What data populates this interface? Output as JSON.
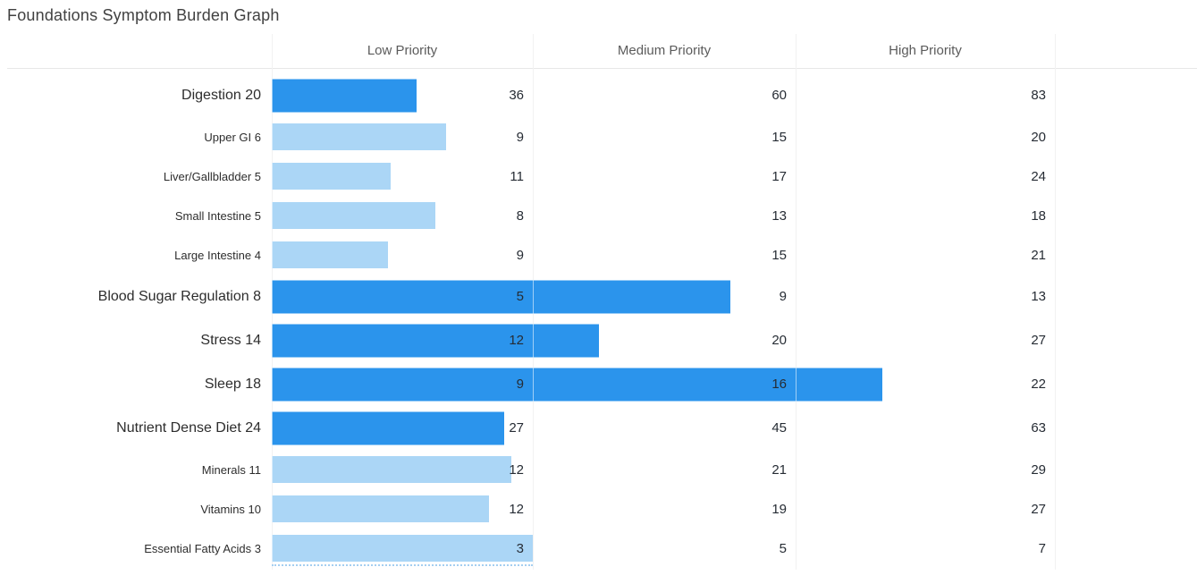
{
  "title": "Foundations Symptom Burden Graph",
  "colors": {
    "bar_primary": "#2b94ec",
    "bar_secondary": "#abd6f6",
    "grid_line": "#e2e2e2",
    "header_text": "#5b5b5b",
    "value_text": "#262c34",
    "title_text": "#414141",
    "dotted_baseline": "#a5cff1"
  },
  "chart_data": {
    "type": "bar",
    "orientation": "horizontal",
    "title": "Foundations Symptom Burden Graph",
    "columns": [
      "Low Priority",
      "Medium Priority",
      "High Priority"
    ],
    "legend": "none",
    "grid": "vertical-column-separators",
    "rows": [
      {
        "display": "Digestion 20",
        "label": "Digestion",
        "score": 20,
        "low": 36,
        "medium": 60,
        "high": 83,
        "emphasis": true
      },
      {
        "display": "Upper GI 6",
        "label": "Upper GI",
        "score": 6,
        "low": 9,
        "medium": 15,
        "high": 20,
        "emphasis": false
      },
      {
        "display": "Liver/Gallbladder 5",
        "label": "Liver/Gallbladder",
        "score": 5,
        "low": 11,
        "medium": 17,
        "high": 24,
        "emphasis": false
      },
      {
        "display": "Small Intestine 5",
        "label": "Small Intestine",
        "score": 5,
        "low": 8,
        "medium": 13,
        "high": 18,
        "emphasis": false
      },
      {
        "display": "Large Intestine 4",
        "label": "Large Intestine",
        "score": 4,
        "low": 9,
        "medium": 15,
        "high": 21,
        "emphasis": false
      },
      {
        "display": "Blood Sugar Regulation 8",
        "label": "Blood Sugar Regulation",
        "score": 8,
        "low": 5,
        "medium": 9,
        "high": 13,
        "emphasis": true
      },
      {
        "display": "Stress 14",
        "label": "Stress",
        "score": 14,
        "low": 12,
        "medium": 20,
        "high": 27,
        "emphasis": true
      },
      {
        "display": "Sleep 18",
        "label": "Sleep",
        "score": 18,
        "low": 9,
        "medium": 16,
        "high": 22,
        "emphasis": true
      },
      {
        "display": "Nutrient Dense Diet 24",
        "label": "Nutrient Dense Diet",
        "score": 24,
        "low": 27,
        "medium": 45,
        "high": 63,
        "emphasis": true
      },
      {
        "display": "Minerals 11",
        "label": "Minerals",
        "score": 11,
        "low": 12,
        "medium": 21,
        "high": 29,
        "emphasis": false
      },
      {
        "display": "Vitamins 10",
        "label": "Vitamins",
        "score": 10,
        "low": 12,
        "medium": 19,
        "high": 27,
        "emphasis": false
      },
      {
        "display": "Essential Fatty Acids 3",
        "label": "Essential Fatty Acids",
        "score": 3,
        "low": 3,
        "medium": 5,
        "high": 7,
        "emphasis": false
      }
    ]
  }
}
